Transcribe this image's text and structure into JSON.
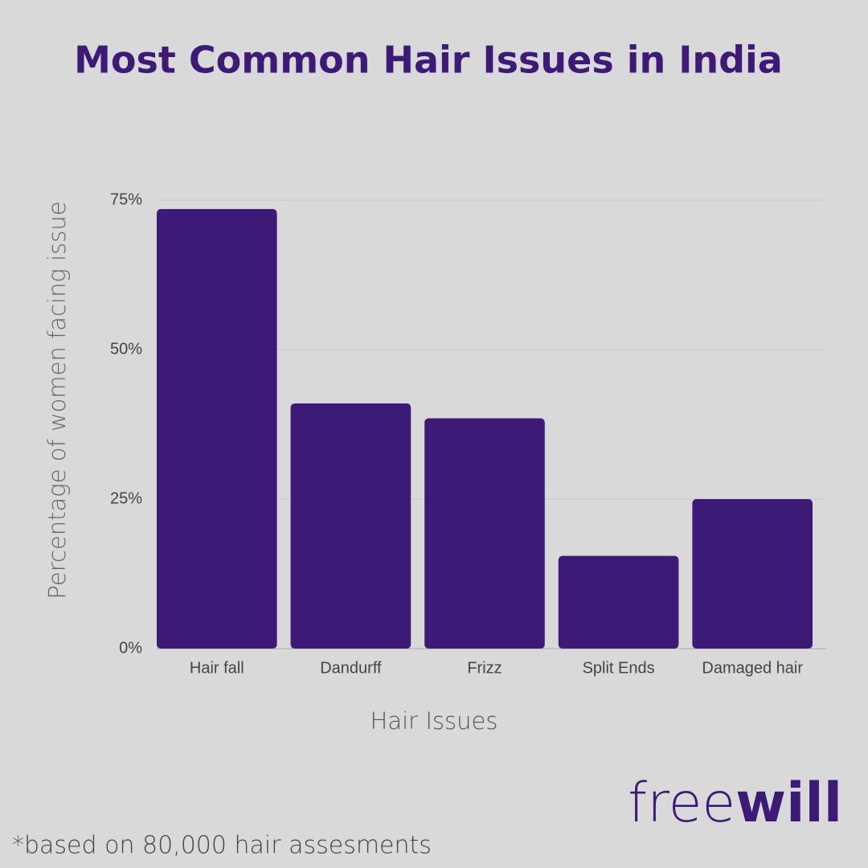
{
  "chart_data": {
    "type": "bar",
    "title": "Most Common Hair Issues in India",
    "x_label": "Hair Issues",
    "y_label": "Percentage of women facing issue",
    "categories": [
      "Hair fall",
      "Dandurff",
      "Frizz",
      "Split Ends",
      "Damaged hair"
    ],
    "values": [
      73.5,
      41,
      38.5,
      15.5,
      25
    ],
    "color": "#3d1a78",
    "ylim": [
      0,
      75
    ],
    "yticks": [
      {
        "value": 0,
        "label": "0%"
      },
      {
        "value": 25,
        "label": "25%"
      },
      {
        "value": 50,
        "label": "50%"
      },
      {
        "value": 75,
        "label": "75%"
      }
    ],
    "grid": true,
    "footnote": "*based on 80,000 hair assesments",
    "logo": [
      "free",
      "will"
    ]
  }
}
